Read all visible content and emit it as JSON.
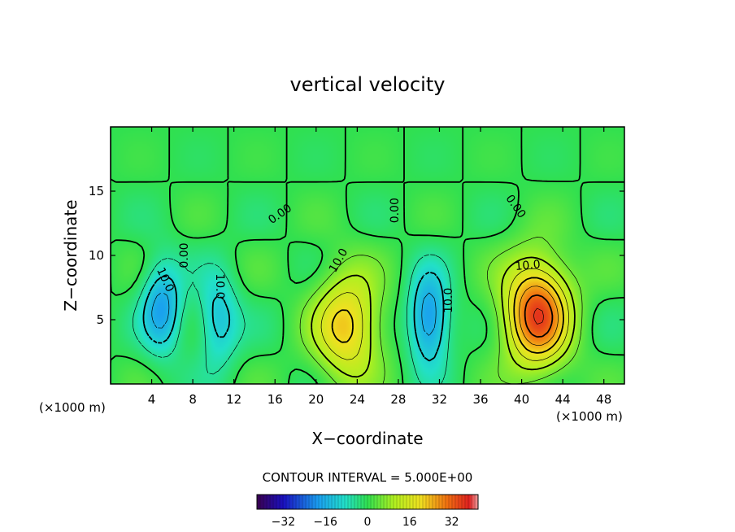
{
  "chart_data": {
    "type": "heatmap",
    "title": "vertical velocity",
    "xlabel": "X−coordinate",
    "ylabel": "Z−coordinate",
    "x_unit_left": "(×1000 m)",
    "x_unit_right": "(×1000 m)",
    "xlim": [
      0,
      50
    ],
    "ylim": [
      0,
      20
    ],
    "x_ticks": [
      4,
      8,
      12,
      16,
      20,
      24,
      28,
      32,
      36,
      40,
      44,
      48
    ],
    "y_ticks": [
      5,
      10,
      15
    ],
    "contour_interval_text": "CONTOUR INTERVAL = 5.000E+00",
    "contour_interval": 5.0,
    "contour_labels": [
      {
        "text": "0.00",
        "x": 16.5,
        "y": 13.2,
        "rot": -35
      },
      {
        "text": "0.00",
        "x": 39.4,
        "y": 13.8,
        "rot": 55
      },
      {
        "text": "10.0",
        "x": 22.2,
        "y": 9.6,
        "rot": -60
      },
      {
        "text": "10.0",
        "x": 32.9,
        "y": 6.5,
        "rot": -90
      },
      {
        "text": "10.0",
        "x": 10.6,
        "y": 7.6,
        "rot": 90
      },
      {
        "text": "10.0",
        "x": 5.3,
        "y": 8.1,
        "rot": 65
      },
      {
        "text": "0.00",
        "x": 7.2,
        "y": 10.0,
        "rot": -90
      },
      {
        "text": "0.00",
        "x": 27.7,
        "y": 13.5,
        "rot": -90
      },
      {
        "text": "10.0",
        "x": 40.6,
        "y": 9.2,
        "rot": -5
      }
    ],
    "features": [
      {
        "kind": "updraft",
        "x": 41.5,
        "y": 5.5,
        "peak": 34
      },
      {
        "kind": "updraft",
        "x": 23.0,
        "y": 4.5,
        "peak": 22
      },
      {
        "kind": "downdraft",
        "x": 5.0,
        "y": 6.0,
        "peak": -17
      },
      {
        "kind": "downdraft",
        "x": 10.5,
        "y": 5.0,
        "peak": -13
      },
      {
        "kind": "downdraft",
        "x": 31.0,
        "y": 5.0,
        "peak": -20
      }
    ],
    "colorbar": {
      "min": -42,
      "max": 42,
      "tick_labels": [
        "−32",
        "−16",
        "0",
        "16",
        "32"
      ],
      "tick_values": [
        -32,
        -16,
        0,
        16,
        32
      ]
    }
  }
}
